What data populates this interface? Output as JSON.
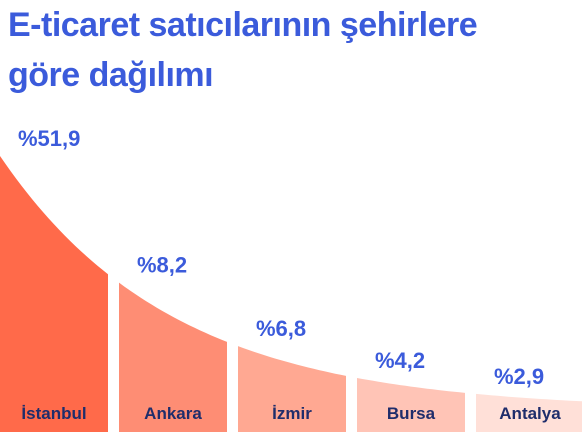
{
  "title": {
    "line1": "E-ticaret satıcılarının şehirlere",
    "line2": "göre dağılımı"
  },
  "chart_data": {
    "type": "area",
    "categories": [
      "İstanbul",
      "Ankara",
      "İzmir",
      "Bursa",
      "Antalya"
    ],
    "values": [
      51.9,
      8.2,
      6.8,
      4.2,
      2.9
    ],
    "value_labels": [
      "%51,9",
      "%8,2",
      "%6,8",
      "%4,2",
      "%2,9"
    ],
    "unit": "%",
    "colors": {
      "fills": [
        "#ff6a4a",
        "#fe8d74",
        "#ffa892",
        "#ffc4b6",
        "#ffe0d8"
      ],
      "value_text": "#3b5bdb",
      "category_text": "#1f2d6b"
    }
  }
}
